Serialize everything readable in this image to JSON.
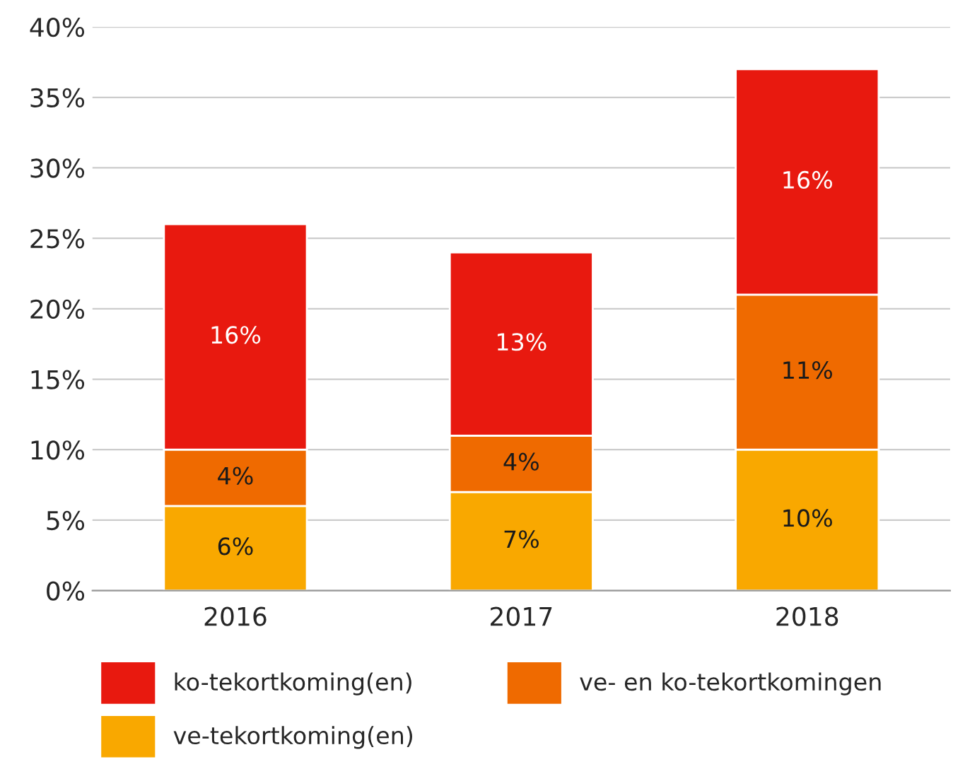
{
  "chart_data": {
    "type": "bar",
    "stacked": true,
    "categories": [
      "2016",
      "2017",
      "2018"
    ],
    "series": [
      {
        "name": "ve-tekortkoming(en)",
        "color": "#f9a800",
        "values": [
          6,
          7,
          10
        ],
        "value_labels": [
          "6%",
          "7%",
          "10%"
        ]
      },
      {
        "name": "ve- en ko-tekortkomingen",
        "color": "#ef6a00",
        "values": [
          4,
          4,
          11
        ],
        "value_labels": [
          "4%",
          "4%",
          "11%"
        ]
      },
      {
        "name": "ko-tekortkoming(en)",
        "color": "#e8190f",
        "values": [
          16,
          13,
          16
        ],
        "value_labels": [
          "16%",
          "13%",
          "16%"
        ]
      }
    ],
    "ylim": [
      0,
      40
    ],
    "yticks": [
      {
        "value": 0,
        "label": "0%"
      },
      {
        "value": 5,
        "label": "5%"
      },
      {
        "value": 10,
        "label": "10%"
      },
      {
        "value": 15,
        "label": "15%"
      },
      {
        "value": 20,
        "label": "20%"
      },
      {
        "value": 25,
        "label": "25%"
      },
      {
        "value": 30,
        "label": "30%"
      },
      {
        "value": 35,
        "label": "35%"
      },
      {
        "value": 40,
        "label": "40%"
      }
    ],
    "grid": "y",
    "legend": "bottom"
  }
}
